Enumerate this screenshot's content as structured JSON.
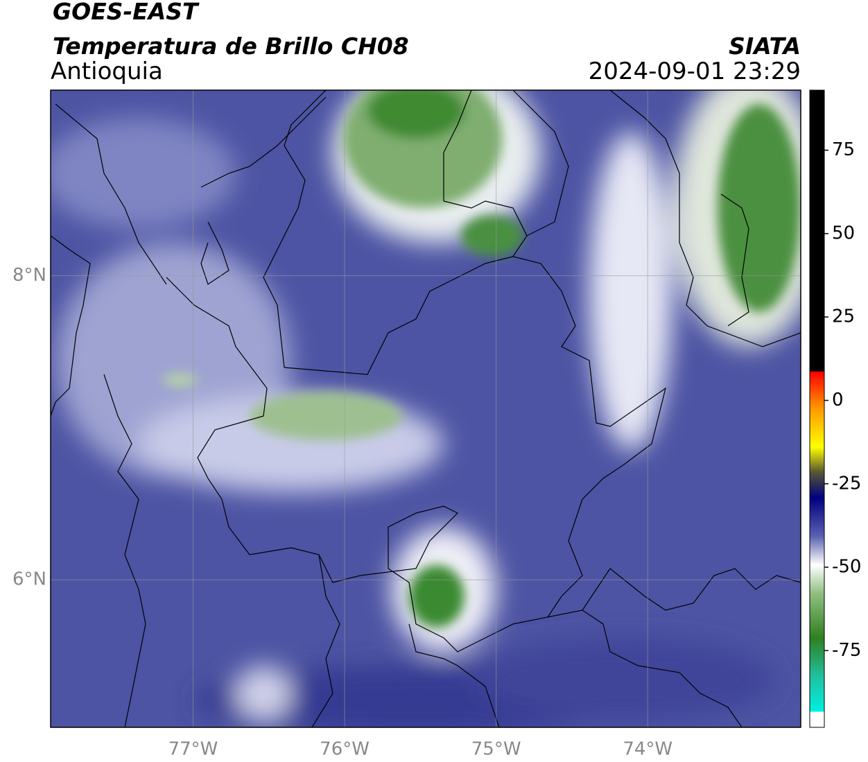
{
  "title": "GOES-EAST",
  "subtitle": "Temperatura de Brillo CH08",
  "region": "Antioquia",
  "source": "SIATA",
  "datetime": "2024-09-01 23:29",
  "map": {
    "xlim": [
      -77.94,
      -72.99
    ],
    "ylim": [
      5.03,
      9.22
    ],
    "xticks": [
      {
        "value": -77,
        "label": "77°W"
      },
      {
        "value": -76,
        "label": "76°W"
      },
      {
        "value": -75,
        "label": "75°W"
      },
      {
        "value": -74,
        "label": "74°W"
      }
    ],
    "yticks": [
      {
        "value": 8,
        "label": "8°N"
      },
      {
        "value": 6,
        "label": "6°N"
      }
    ],
    "grid": true
  },
  "colorbar": {
    "lim": [
      -98,
      93
    ],
    "ticks": [
      75,
      50,
      25,
      0,
      -25,
      -50,
      -75
    ]
  }
}
